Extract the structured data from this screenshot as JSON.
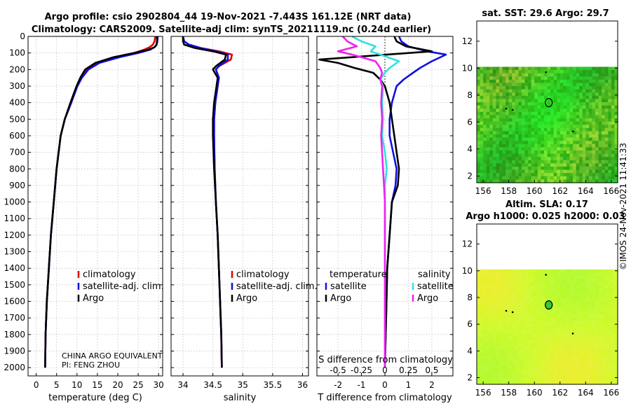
{
  "title_line1": "Argo profile: csio 2902804_44 19-Nov-2021 -7.443S 161.12E (NRT data)",
  "title_line2": "Climatology: CARS2009. Satellite-adj clim: synTS_20211119.nc (0.24d earlier)",
  "side_label": "©IMOS 24-Nov-2021 11:41:33",
  "colors": {
    "climatology": "#e00000",
    "satellite": "#1010e0",
    "argo": "#000000",
    "sat_salinity": "#30e0e0",
    "argo_salinity": "#f020f0"
  },
  "chart_data": [
    {
      "name": "temperature",
      "type": "line",
      "xlabel": "temperature (deg C)",
      "xlim": [
        -2,
        31
      ],
      "xticks": [
        "0",
        "5",
        "10",
        "15",
        "20",
        "25",
        "30"
      ],
      "ylim": [
        0,
        2050
      ],
      "yticks": [
        "0",
        "100",
        "200",
        "300",
        "400",
        "500",
        "600",
        "700",
        "800",
        "900",
        "1000",
        "1100",
        "1200",
        "1300",
        "1400",
        "1500",
        "1600",
        "1700",
        "1800",
        "1900",
        "2000"
      ],
      "legend": [
        "climatology",
        "satellite-adj. clim.",
        "Argo"
      ],
      "notes": [
        "CHINA ARGO EQUIVALENT",
        "PI: FENG ZHOU"
      ],
      "series": [
        {
          "name": "climatology",
          "color": "#e00000",
          "x": [
            29.2,
            29.0,
            28.6,
            27.8,
            26.5,
            24.0,
            20.0,
            15.0,
            12.5,
            11.0,
            10.0,
            8.6,
            7.0,
            6.0,
            5.0,
            4.3,
            3.6,
            3.1,
            2.6,
            2.3,
            2.2
          ],
          "y": [
            0,
            30,
            50,
            65,
            80,
            100,
            125,
            160,
            200,
            250,
            300,
            400,
            500,
            600,
            800,
            1000,
            1200,
            1400,
            1600,
            1800,
            2000
          ]
        },
        {
          "name": "satellite-adj. clim.",
          "color": "#1010e0",
          "x": [
            29.8,
            29.7,
            29.5,
            29.0,
            28.0,
            25.0,
            20.5,
            15.5,
            12.8,
            11.2,
            10.1,
            8.6,
            7.0,
            6.0,
            5.0,
            4.3,
            3.6,
            3.1,
            2.6,
            2.3,
            2.2
          ],
          "y": [
            0,
            30,
            50,
            65,
            80,
            100,
            125,
            160,
            200,
            250,
            300,
            400,
            500,
            600,
            800,
            1000,
            1200,
            1400,
            1600,
            1800,
            2000
          ]
        },
        {
          "name": "Argo",
          "color": "#000000",
          "x": [
            29.6,
            29.6,
            29.5,
            29.0,
            27.5,
            24.0,
            19.0,
            14.5,
            12.0,
            10.8,
            9.9,
            8.4,
            7.0,
            6.0,
            5.0,
            4.3,
            3.6,
            3.1,
            2.6,
            2.3,
            2.2
          ],
          "y": [
            0,
            30,
            50,
            65,
            80,
            100,
            125,
            160,
            200,
            250,
            300,
            400,
            500,
            600,
            800,
            1000,
            1200,
            1400,
            1600,
            1800,
            2000
          ]
        }
      ]
    },
    {
      "name": "salinity",
      "type": "line",
      "xlabel": "salinity",
      "xlim": [
        33.8,
        36.1
      ],
      "xticks": [
        "34",
        "34.5",
        "35",
        "35.5",
        "36"
      ],
      "ylim": [
        0,
        2050
      ],
      "legend": [
        "climatology",
        "satellite-adj. clim.",
        "Argo"
      ],
      "series": [
        {
          "name": "climatology",
          "color": "#e00000",
          "x": [
            34.0,
            34.02,
            34.1,
            34.3,
            34.6,
            34.82,
            34.8,
            34.6,
            34.55,
            34.6,
            34.58,
            34.54,
            34.52,
            34.52,
            34.53,
            34.55,
            34.58,
            34.6,
            34.62,
            34.64,
            34.65
          ],
          "y": [
            0,
            30,
            50,
            70,
            90,
            110,
            140,
            180,
            200,
            250,
            300,
            400,
            500,
            600,
            800,
            1000,
            1200,
            1400,
            1600,
            1800,
            2000
          ]
        },
        {
          "name": "satellite-adj. clim.",
          "color": "#1010e0",
          "x": [
            34.0,
            34.02,
            34.1,
            34.3,
            34.55,
            34.75,
            34.75,
            34.6,
            34.55,
            34.6,
            34.58,
            34.54,
            34.52,
            34.52,
            34.53,
            34.55,
            34.58,
            34.6,
            34.62,
            34.64,
            34.65
          ],
          "y": [
            0,
            30,
            50,
            70,
            90,
            110,
            140,
            180,
            200,
            250,
            300,
            400,
            500,
            600,
            800,
            1000,
            1200,
            1400,
            1600,
            1800,
            2000
          ]
        },
        {
          "name": "Argo",
          "color": "#000000",
          "x": [
            34.0,
            34.0,
            34.02,
            34.2,
            34.5,
            34.72,
            34.7,
            34.55,
            34.5,
            34.58,
            34.56,
            34.52,
            34.5,
            34.5,
            34.52,
            34.55,
            34.58,
            34.6,
            34.62,
            34.64,
            34.65
          ],
          "y": [
            0,
            30,
            50,
            70,
            90,
            110,
            140,
            180,
            200,
            250,
            300,
            400,
            500,
            600,
            800,
            1000,
            1200,
            1400,
            1600,
            1800,
            2000
          ]
        }
      ]
    },
    {
      "name": "difference",
      "type": "line",
      "xlabel": "T difference from climatology",
      "xlabel2": "S difference from climatology",
      "xlim": [
        -2.9,
        2.9
      ],
      "xticks": [
        "-2",
        "-1",
        "0",
        "1",
        "2"
      ],
      "sxticks": [
        "-0.5",
        "-0.25",
        "0",
        "0.25",
        "0.5"
      ],
      "ylim": [
        0,
        2050
      ],
      "legend_heading_t": "temperature",
      "legend_heading_s": "salinity",
      "legend": [
        "satellite",
        "Argo",
        "satellite",
        "Argo"
      ],
      "series": [
        {
          "name": "T satellite",
          "color": "#1010e0",
          "x": [
            0.6,
            0.7,
            1.0,
            1.8,
            2.6,
            2.0,
            1.5,
            1.2,
            0.8,
            0.5,
            0.3,
            0.2,
            0.2,
            0.35,
            0.5,
            0.45,
            0.3,
            0.2,
            0.1,
            0.05,
            0.0
          ],
          "y": [
            0,
            30,
            60,
            90,
            110,
            150,
            190,
            220,
            260,
            300,
            400,
            500,
            600,
            700,
            800,
            900,
            1000,
            1200,
            1400,
            1700,
            2000
          ]
        },
        {
          "name": "T Argo",
          "color": "#000000",
          "x": [
            0.4,
            0.5,
            0.9,
            2.0,
            -2.8,
            -2.0,
            -1.3,
            -0.5,
            -0.2,
            0.0,
            0.2,
            0.3,
            0.4,
            0.5,
            0.6,
            0.55,
            0.3,
            0.2,
            0.1,
            0.05,
            0.0
          ],
          "y": [
            0,
            30,
            60,
            90,
            140,
            160,
            190,
            220,
            260,
            300,
            400,
            500,
            600,
            700,
            800,
            900,
            1000,
            1200,
            1400,
            1700,
            2000
          ]
        },
        {
          "name": "S satellite",
          "color": "#30e0e0",
          "x": [
            -0.35,
            -0.25,
            -0.1,
            -0.15,
            -0.05,
            0.15,
            0.05,
            0.0,
            -0.05,
            -0.02,
            -0.03,
            -0.02,
            -0.03,
            0.0,
            0.02,
            0.0,
            0.0,
            0.0,
            0.0,
            0.0,
            0.0
          ],
          "y": [
            0,
            30,
            60,
            90,
            110,
            150,
            190,
            220,
            260,
            300,
            400,
            500,
            600,
            700,
            800,
            900,
            1000,
            1200,
            1400,
            1700,
            2000
          ]
        },
        {
          "name": "S Argo",
          "color": "#f020f0",
          "x": [
            -0.45,
            -0.4,
            -0.3,
            -0.5,
            -0.35,
            -0.1,
            -0.05,
            -0.03,
            -0.05,
            -0.03,
            -0.04,
            -0.03,
            -0.04,
            -0.03,
            -0.02,
            -0.01,
            0.0,
            0.0,
            0.0,
            0.0,
            0.0
          ],
          "y": [
            0,
            30,
            60,
            90,
            110,
            150,
            190,
            220,
            260,
            300,
            400,
            500,
            600,
            700,
            800,
            900,
            1000,
            1200,
            1400,
            1700,
            2000
          ]
        }
      ]
    },
    {
      "name": "sst_map",
      "type": "heatmap",
      "title": "sat. SST: 29.6 Argo: 29.7",
      "xlim": [
        155.5,
        166.5
      ],
      "ylim": [
        1.5,
        13.5
      ],
      "data_ylim": [
        1.5,
        10.1
      ],
      "xticks": [
        "156",
        "158",
        "160",
        "162",
        "164",
        "166"
      ],
      "yticks": [
        "2",
        "4",
        "6",
        "8",
        "10",
        "12"
      ],
      "float_position": [
        161.12,
        7.44
      ]
    },
    {
      "name": "sla_map",
      "type": "heatmap",
      "title": "Altim. SLA: 0.17",
      "subtitle": "Argo h1000: 0.025 h2000: 0.03",
      "xlim": [
        155.5,
        166.5
      ],
      "ylim": [
        1.5,
        13.5
      ],
      "data_ylim": [
        1.5,
        10.1
      ],
      "xticks": [
        "156",
        "158",
        "160",
        "162",
        "164",
        "166"
      ],
      "yticks": [
        "2",
        "4",
        "6",
        "8",
        "10",
        "12"
      ],
      "float_position": [
        161.12,
        7.44
      ]
    }
  ]
}
